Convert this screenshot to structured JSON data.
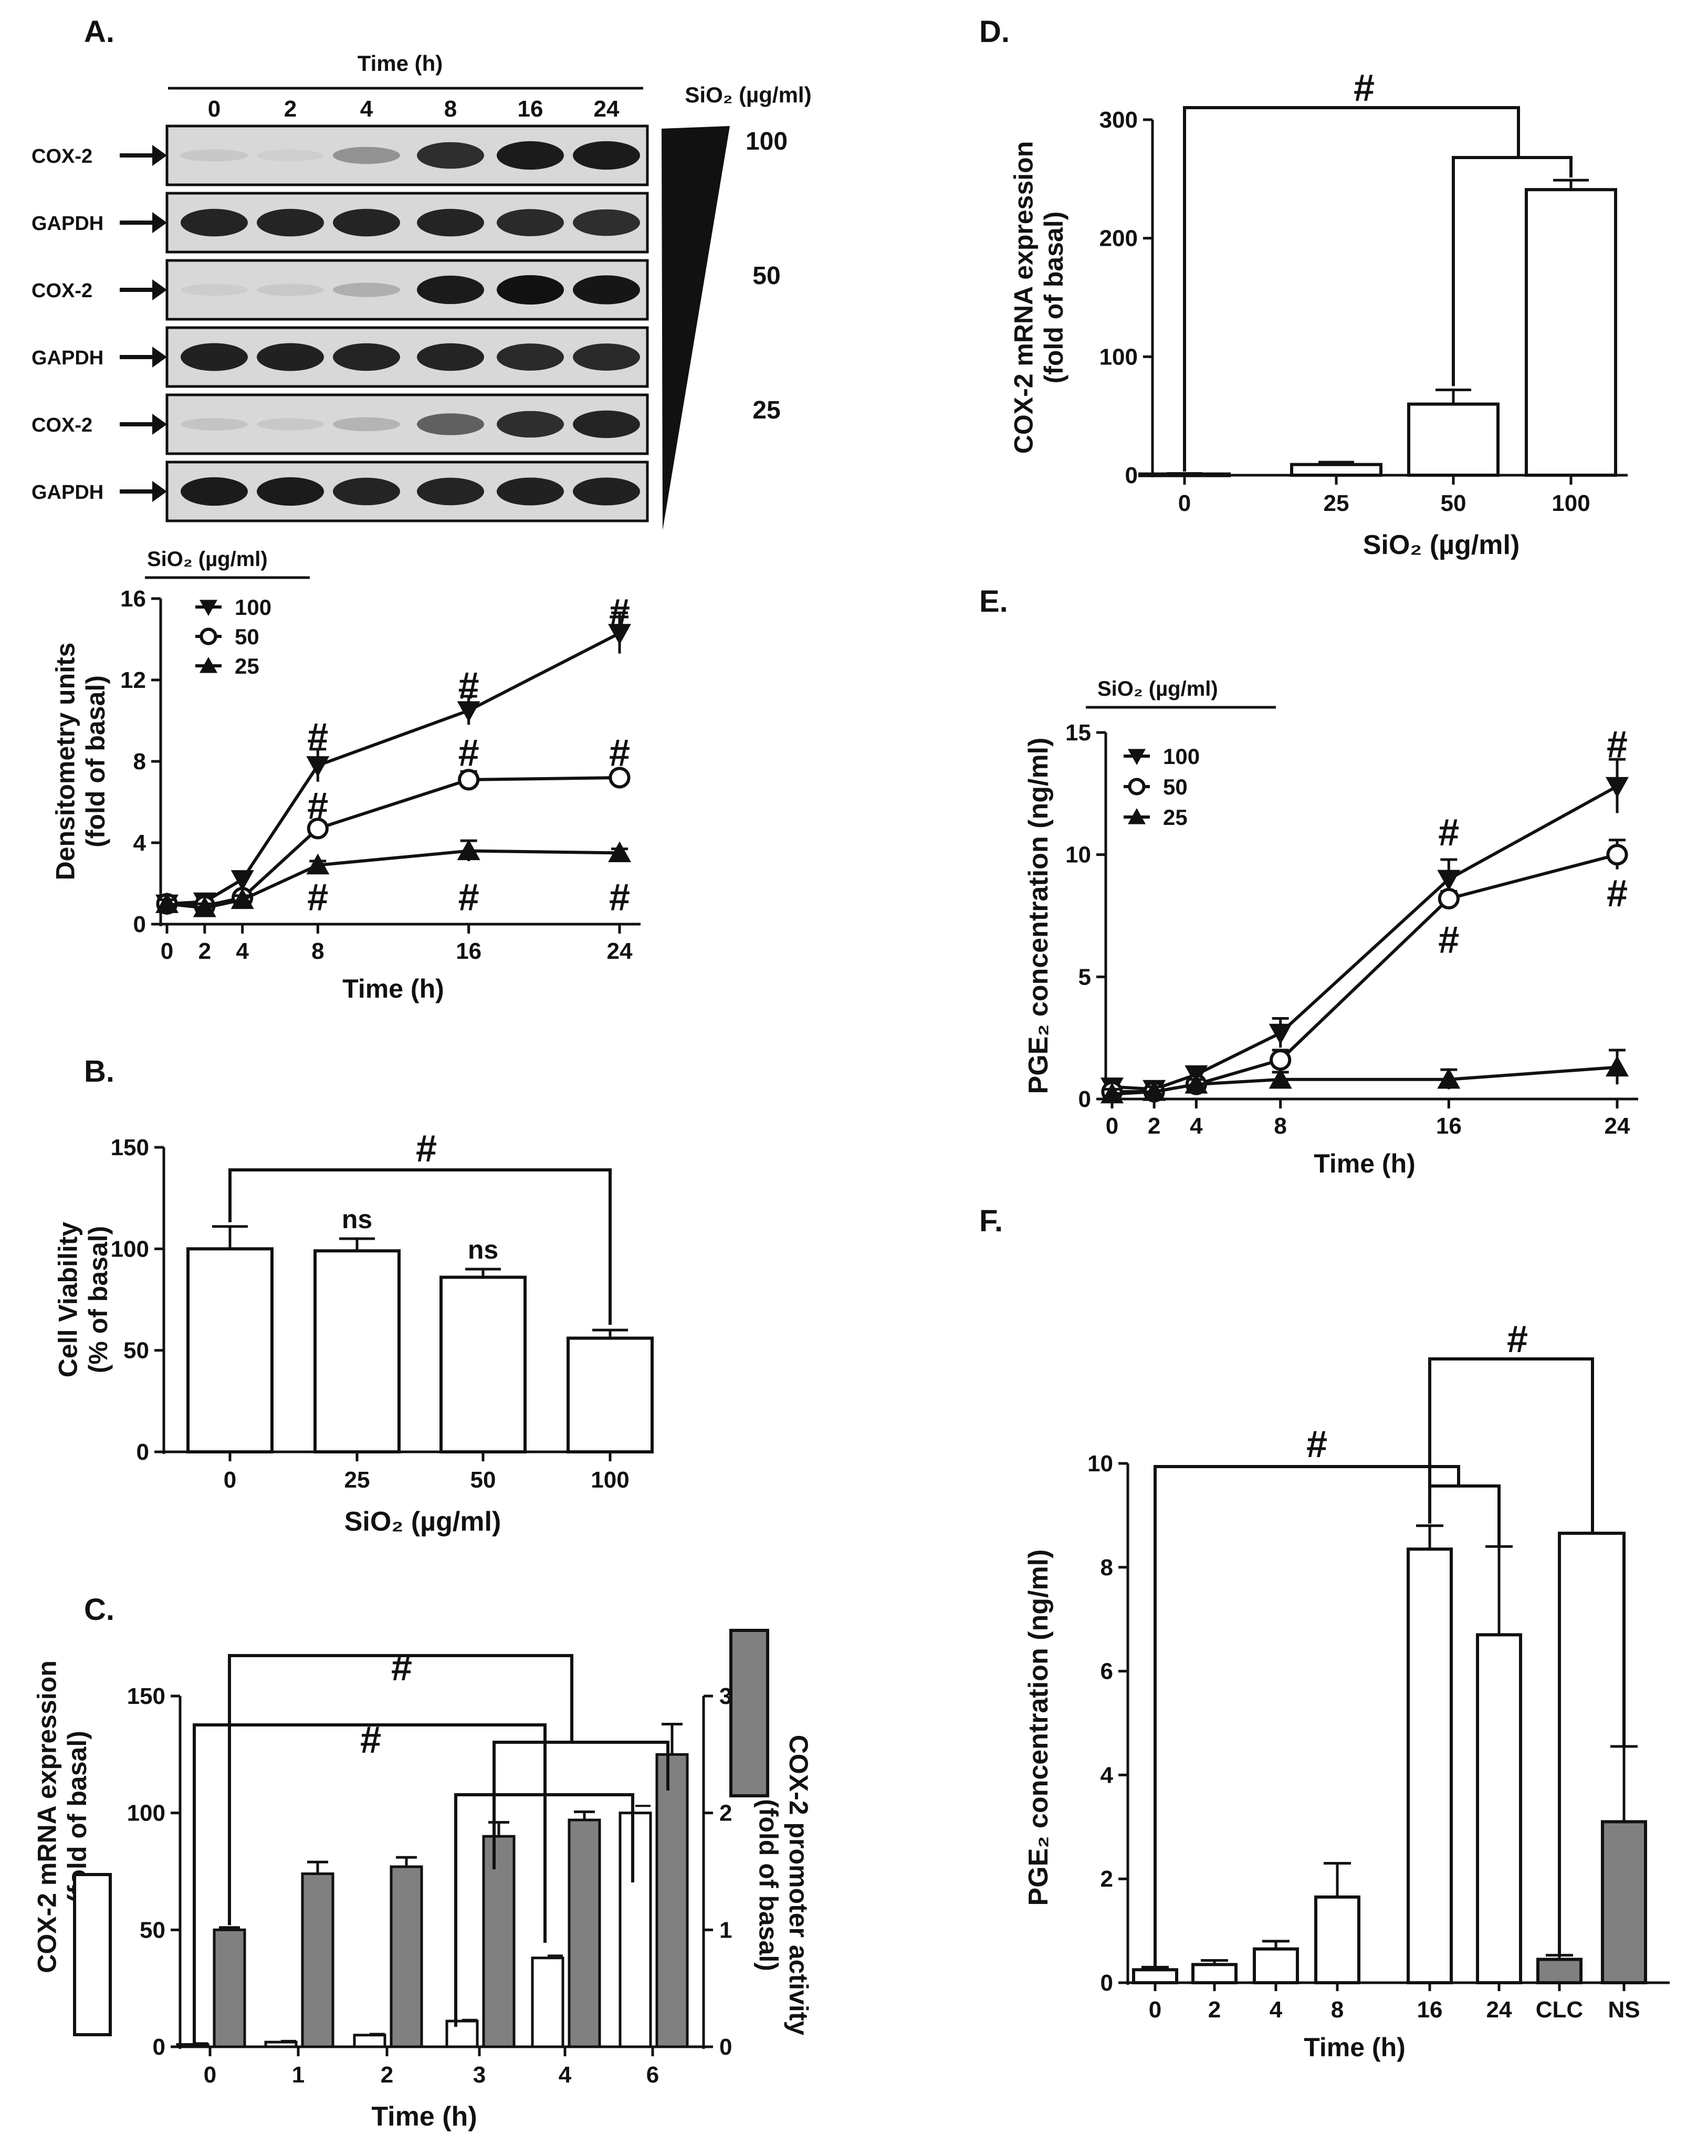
{
  "figure": {
    "panels": [
      "A.",
      "B.",
      "C.",
      "D.",
      "E.",
      "F."
    ]
  },
  "blot": {
    "header": "Time (h)",
    "lanes": [
      "0",
      "2",
      "4",
      "8",
      "16",
      "24"
    ],
    "dose_header": "SiO₂ (µg/ml)",
    "rows": [
      {
        "label": "COX-2",
        "dose": "100",
        "intensity": [
          0.08,
          0.05,
          0.35,
          0.85,
          0.95,
          0.95
        ]
      },
      {
        "label": "GAPDH",
        "dose": "",
        "intensity": [
          0.9,
          0.9,
          0.9,
          0.9,
          0.88,
          0.85
        ]
      },
      {
        "label": "COX-2",
        "dose": "50",
        "intensity": [
          0.06,
          0.08,
          0.2,
          0.95,
          1.0,
          0.98
        ]
      },
      {
        "label": "GAPDH",
        "dose": "",
        "intensity": [
          0.92,
          0.92,
          0.9,
          0.9,
          0.88,
          0.88
        ]
      },
      {
        "label": "COX-2",
        "dose": "25",
        "intensity": [
          0.1,
          0.08,
          0.18,
          0.6,
          0.85,
          0.9
        ]
      },
      {
        "label": "GAPDH",
        "dose": "",
        "intensity": [
          0.95,
          0.95,
          0.9,
          0.9,
          0.92,
          0.92
        ]
      }
    ]
  },
  "chart_data": [
    {
      "id": "A",
      "type": "line",
      "x": [
        0,
        2,
        4,
        8,
        16,
        24
      ],
      "xticks": [
        "0",
        "2",
        "4",
        "8",
        "16",
        "24"
      ],
      "xlabel": "Time (h)",
      "ylabel": [
        "Densitometry units",
        "(fold of basal)"
      ],
      "ylim": [
        0,
        16
      ],
      "yticks": [
        0,
        4,
        8,
        12,
        16
      ],
      "legend_title": "SiO₂ (µg/ml)",
      "series": [
        {
          "name": "100",
          "marker": "tri-down",
          "values": [
            1,
            1.1,
            2.2,
            7.8,
            10.5,
            14.3
          ],
          "err": [
            0.2,
            0.2,
            0.3,
            0.8,
            0.7,
            1.0
          ]
        },
        {
          "name": "50",
          "marker": "circle",
          "values": [
            1,
            0.9,
            1.3,
            4.7,
            7.1,
            7.2
          ],
          "err": [
            0.2,
            0.2,
            0.2,
            0.3,
            0.4,
            0.3
          ]
        },
        {
          "name": "25",
          "marker": "tri-up",
          "values": [
            1,
            0.8,
            1.2,
            2.9,
            3.6,
            3.5
          ],
          "err": [
            0.2,
            0.2,
            0.2,
            0.2,
            0.5,
            0.2
          ]
        }
      ],
      "annotations": [
        {
          "text": "#",
          "x": 24,
          "y": 15.3
        },
        {
          "text": "#",
          "x": 16,
          "y": 11.7
        },
        {
          "text": "#",
          "x": 8,
          "y": 9.2
        },
        {
          "text": "#",
          "x": 16,
          "y": 8.4
        },
        {
          "text": "#",
          "x": 24,
          "y": 8.4
        },
        {
          "text": "#",
          "x": 8,
          "y": 5.8
        },
        {
          "text": "#",
          "x": 8,
          "y": 1.3
        },
        {
          "text": "#",
          "x": 16,
          "y": 1.3
        },
        {
          "text": "#",
          "x": 24,
          "y": 1.3
        }
      ]
    },
    {
      "id": "B",
      "type": "bar",
      "categories": [
        "0",
        "25",
        "50",
        "100"
      ],
      "values": [
        100,
        99,
        86,
        56
      ],
      "err": [
        11,
        6,
        4,
        4
      ],
      "xlabel": "SiO₂ (µg/ml)",
      "ylabel": [
        "Cell Viability",
        "(% of basal)"
      ],
      "ylim": [
        0,
        150
      ],
      "yticks": [
        0,
        50,
        100,
        150
      ],
      "annotations": [
        {
          "text": "ns",
          "cat": 1
        },
        {
          "text": "ns",
          "cat": 2
        }
      ],
      "significance": [
        {
          "text": "#",
          "from": 0,
          "to": 3
        }
      ]
    },
    {
      "id": "C",
      "type": "bar",
      "categories": [
        "0",
        "1",
        "2",
        "3",
        "4",
        "6"
      ],
      "xlabel": "Time (h)",
      "ylabel_left": [
        "COX-2 mRNA expression",
        "(fold of basal)"
      ],
      "ylabel_right": [
        "COX-2 promoter activity",
        "(fold of basal)"
      ],
      "ylim_left": [
        0,
        150
      ],
      "yticks_left": [
        0,
        50,
        100,
        150
      ],
      "ylim_right": [
        0,
        3
      ],
      "yticks_right": [
        0,
        1,
        2,
        3
      ],
      "series": [
        {
          "name": "COX-2 mRNA expression",
          "axis": "left",
          "color": "#ffffff",
          "values": [
            1,
            2,
            5,
            11,
            38,
            100
          ],
          "err": [
            0.5,
            0.5,
            0.5,
            0.5,
            1,
            3
          ]
        },
        {
          "name": "COX-2 promoter activity",
          "axis": "right",
          "color": "#808080",
          "values": [
            1.0,
            1.48,
            1.54,
            1.8,
            1.94,
            2.5
          ],
          "err": [
            0.02,
            0.1,
            0.08,
            0.12,
            0.07,
            0.26
          ]
        }
      ],
      "significance": [
        {
          "text": "#"
        },
        {
          "text": "#"
        }
      ]
    },
    {
      "id": "D",
      "type": "bar",
      "categories": [
        "0",
        "25",
        "50",
        "100"
      ],
      "values": [
        1,
        9,
        60,
        241
      ],
      "err": [
        0.5,
        2,
        12,
        8
      ],
      "xlabel": "SiO₂ (µg/ml)",
      "ylabel": [
        "COX-2 mRNA expression",
        "(fold of basal)"
      ],
      "ylim": [
        0,
        300
      ],
      "yticks": [
        0,
        100,
        200,
        300
      ],
      "significance": [
        {
          "text": "#"
        }
      ]
    },
    {
      "id": "E",
      "type": "line",
      "x": [
        0,
        2,
        4,
        8,
        16,
        24
      ],
      "xticks": [
        "0",
        "2",
        "4",
        "8",
        "16",
        "24"
      ],
      "xlabel": "Time (h)",
      "ylabel": "PGE₂ concentration (ng/ml)",
      "ylim": [
        0,
        15
      ],
      "yticks": [
        0,
        5,
        10,
        15
      ],
      "legend_title": "SiO₂ (µg/ml)",
      "series": [
        {
          "name": "100",
          "marker": "tri-down",
          "values": [
            0.5,
            0.4,
            1.0,
            2.7,
            9.0,
            12.8
          ],
          "err": [
            0.2,
            0.2,
            0.3,
            0.6,
            0.8,
            1.1
          ]
        },
        {
          "name": "50",
          "marker": "circle",
          "values": [
            0.3,
            0.3,
            0.6,
            1.6,
            8.2,
            10.0
          ],
          "err": [
            0.2,
            0.2,
            0.2,
            0.4,
            0.3,
            0.6
          ]
        },
        {
          "name": "25",
          "marker": "tri-up",
          "values": [
            0.2,
            0.3,
            0.6,
            0.8,
            0.8,
            1.3
          ],
          "err": [
            0.2,
            0.2,
            0.2,
            0.3,
            0.4,
            0.7
          ]
        }
      ],
      "annotations": [
        {
          "text": "#",
          "x": 24,
          "y": 14.5
        },
        {
          "text": "#",
          "x": 16,
          "y": 10.9
        },
        {
          "text": "#",
          "x": 16,
          "y": 6.5
        },
        {
          "text": "#",
          "x": 24,
          "y": 8.4
        }
      ]
    },
    {
      "id": "F",
      "type": "bar",
      "categories": [
        "0",
        "2",
        "4",
        "8",
        "16",
        "24",
        "CLC",
        "NS"
      ],
      "values": [
        0.25,
        0.35,
        0.65,
        1.65,
        8.35,
        6.7,
        0.45,
        3.1
      ],
      "err": [
        0.05,
        0.08,
        0.15,
        0.65,
        0.45,
        1.7,
        0.08,
        1.45
      ],
      "colors": [
        "#ffffff",
        "#ffffff",
        "#ffffff",
        "#ffffff",
        "#ffffff",
        "#ffffff",
        "#808080",
        "#808080"
      ],
      "xlabel": "Time (h)",
      "ylabel": "PGE₂ concentration (ng/ml)",
      "ylim": [
        0,
        10
      ],
      "yticks": [
        0,
        2,
        4,
        6,
        8,
        10
      ],
      "significance": [
        {
          "text": "#"
        },
        {
          "text": "#"
        }
      ]
    }
  ]
}
